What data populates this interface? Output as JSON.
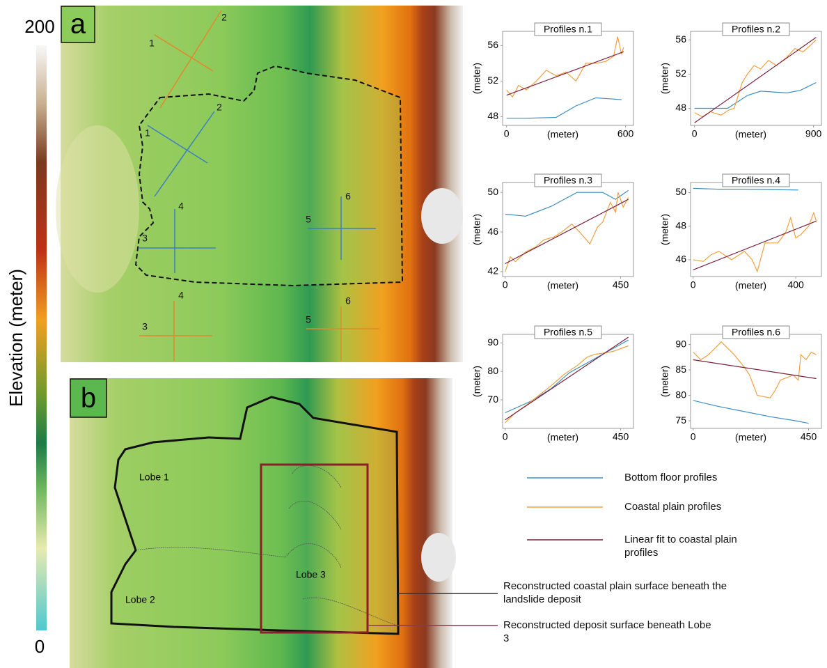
{
  "figure": {
    "colorbar": {
      "label": "Elevation (meter)",
      "max_label": "200",
      "min_label": "0"
    },
    "panel_a": "a",
    "panel_b": "b",
    "map_a_labels": [
      "1",
      "2",
      "1",
      "2",
      "4",
      "3",
      "5",
      "6",
      "4",
      "3",
      "6",
      "5"
    ],
    "lobes": [
      "Lobe 1",
      "Lobe 2",
      "Lobe 3"
    ],
    "callouts": [
      "Reconstructed coastal plain surface beneath the landslide deposit",
      "Reconstructed deposit surface beneath Lobe 3"
    ],
    "legend": [
      {
        "name": "Bottom floor profiles",
        "color": "#3d8fc0"
      },
      {
        "name": "Coastal plain profiles",
        "color": "#f0a040"
      },
      {
        "name": "Linear fit to coastal plain profiles",
        "color": "#7a1f3a"
      }
    ]
  },
  "chart_data": [
    {
      "type": "line",
      "title": "Profiles n.1",
      "xlabel": "(meter)",
      "ylabel": "(meter)",
      "xlim": [
        -20,
        640
      ],
      "ylim": [
        47,
        57.6
      ],
      "xticks": [
        0,
        600
      ],
      "yticks": [
        48,
        52,
        56
      ],
      "series": [
        {
          "color": "#3d8fc0",
          "x": [
            0,
            100,
            250,
            350,
            450,
            520,
            580
          ],
          "values": [
            47.8,
            47.8,
            47.9,
            49.2,
            50.1,
            50.0,
            49.9
          ]
        },
        {
          "color": "#f0a040",
          "x": [
            0,
            30,
            60,
            100,
            150,
            200,
            250,
            300,
            350,
            400,
            450,
            500,
            540,
            560,
            580,
            590
          ],
          "values": [
            51.0,
            50.2,
            51.5,
            51.0,
            52.0,
            53.2,
            52.6,
            53.0,
            52.0,
            54.0,
            54.0,
            54.2,
            54.8,
            57.0,
            55.0,
            55.8
          ]
        },
        {
          "color": "#7a1f3a",
          "x": [
            0,
            590
          ],
          "values": [
            50.4,
            55.3
          ]
        }
      ]
    },
    {
      "type": "line",
      "title": "Profiles n.2",
      "xlabel": "(meter)",
      "ylabel": "(meter)",
      "xlim": [
        -30,
        960
      ],
      "ylim": [
        46,
        57
      ],
      "xticks": [
        0,
        900
      ],
      "yticks": [
        48,
        52,
        56
      ],
      "series": [
        {
          "color": "#3d8fc0",
          "x": [
            0,
            250,
            400,
            500,
            600,
            700,
            800,
            920
          ],
          "values": [
            48.0,
            48.0,
            49.5,
            50.0,
            49.9,
            49.8,
            50.1,
            51.0
          ]
        },
        {
          "color": "#f0a040",
          "x": [
            0,
            60,
            120,
            200,
            260,
            300,
            360,
            400,
            450,
            500,
            560,
            620,
            700,
            760,
            820,
            880,
            920
          ],
          "values": [
            47.5,
            47.0,
            47.6,
            47.2,
            47.8,
            48.0,
            51.0,
            52.0,
            53.0,
            52.6,
            53.6,
            53.0,
            54.0,
            55.0,
            54.6,
            55.4,
            56.0
          ]
        },
        {
          "color": "#7a1f3a",
          "x": [
            0,
            920
          ],
          "values": [
            46.3,
            56.3
          ]
        }
      ]
    },
    {
      "type": "line",
      "title": "Profiles n.3",
      "xlabel": "(meter)",
      "ylabel": "(meter)",
      "xlim": [
        -10,
        500
      ],
      "ylim": [
        41.5,
        51
      ],
      "xticks": [
        0,
        450
      ],
      "yticks": [
        42,
        46,
        50
      ],
      "series": [
        {
          "color": "#3d8fc0",
          "x": [
            0,
            80,
            180,
            280,
            380,
            430,
            480
          ],
          "values": [
            47.8,
            47.6,
            48.6,
            50.0,
            50.0,
            49.3,
            50.2
          ]
        },
        {
          "color": "#f0a040",
          "x": [
            0,
            20,
            40,
            80,
            120,
            150,
            190,
            220,
            260,
            290,
            330,
            360,
            380,
            410,
            430,
            440,
            460,
            480
          ],
          "values": [
            42.0,
            43.5,
            43.0,
            44.0,
            44.5,
            45.2,
            45.5,
            46.0,
            46.8,
            46.0,
            44.8,
            46.5,
            47.0,
            49.0,
            48.0,
            50.0,
            48.5,
            49.5
          ]
        },
        {
          "color": "#7a1f3a",
          "x": [
            0,
            480
          ],
          "values": [
            42.8,
            49.3
          ]
        }
      ]
    },
    {
      "type": "line",
      "title": "Profiles n.4",
      "xlabel": "(meter)",
      "ylabel": "(meter)",
      "xlim": [
        -10,
        500
      ],
      "ylim": [
        45,
        50.6
      ],
      "xticks": [
        0,
        400
      ],
      "yticks": [
        46,
        48,
        50
      ],
      "series": [
        {
          "color": "#3d8fc0",
          "x": [
            0,
            100,
            200,
            300,
            410
          ],
          "values": [
            50.25,
            50.2,
            50.2,
            50.18,
            50.15
          ]
        },
        {
          "color": "#f0a040",
          "x": [
            0,
            40,
            70,
            100,
            150,
            200,
            230,
            250,
            280,
            330,
            360,
            380,
            400,
            420,
            450,
            470,
            480
          ],
          "values": [
            46.0,
            45.9,
            46.3,
            46.5,
            46.0,
            46.5,
            46.0,
            45.3,
            47.0,
            47.0,
            47.6,
            48.5,
            47.3,
            47.5,
            48.0,
            48.8,
            48.3
          ]
        },
        {
          "color": "#7a1f3a",
          "x": [
            0,
            480
          ],
          "values": [
            45.4,
            48.3
          ]
        }
      ]
    },
    {
      "type": "line",
      "title": "Profiles n.5",
      "xlabel": "(meter)",
      "ylabel": "(meter)",
      "xlim": [
        -10,
        500
      ],
      "ylim": [
        60,
        93
      ],
      "xticks": [
        0,
        450
      ],
      "yticks": [
        70,
        80,
        90
      ],
      "series": [
        {
          "color": "#3d8fc0",
          "x": [
            0,
            100,
            180,
            250,
            320,
            380,
            430,
            480
          ],
          "values": [
            65.5,
            69.5,
            74.0,
            79.5,
            83.0,
            86.0,
            88.5,
            91.0
          ]
        },
        {
          "color": "#f0a040",
          "x": [
            0,
            40,
            80,
            130,
            180,
            230,
            280,
            320,
            350,
            390,
            420,
            450,
            480
          ],
          "values": [
            62.0,
            65.5,
            68.0,
            71.5,
            75.0,
            79.0,
            82.0,
            85.0,
            86.0,
            86.5,
            87.0,
            88.0,
            89.0
          ]
        },
        {
          "color": "#7a1f3a",
          "x": [
            0,
            480
          ],
          "values": [
            63.0,
            92.0
          ]
        }
      ]
    },
    {
      "type": "line",
      "title": "Profiles n.6",
      "xlabel": "(meter)",
      "ylabel": "(meter)",
      "xlim": [
        -10,
        500
      ],
      "ylim": [
        73.5,
        92
      ],
      "xticks": [
        0,
        450
      ],
      "yticks": [
        75,
        80,
        85,
        90
      ],
      "series": [
        {
          "color": "#3d8fc0",
          "x": [
            0,
            100,
            200,
            300,
            400,
            450
          ],
          "values": [
            79.0,
            77.8,
            76.8,
            75.8,
            75.0,
            74.5
          ]
        },
        {
          "color": "#f0a040",
          "x": [
            0,
            30,
            60,
            110,
            160,
            200,
            220,
            250,
            300,
            320,
            340,
            390,
            410,
            420,
            440,
            460,
            480
          ],
          "values": [
            88.5,
            87.0,
            88.0,
            90.5,
            88.0,
            85.5,
            84.0,
            80.0,
            79.5,
            81.0,
            83.0,
            84.0,
            83.0,
            88.0,
            87.0,
            88.5,
            88.0
          ]
        },
        {
          "color": "#7a1f3a",
          "x": [
            0,
            480
          ],
          "values": [
            87.0,
            83.3
          ]
        }
      ]
    }
  ]
}
